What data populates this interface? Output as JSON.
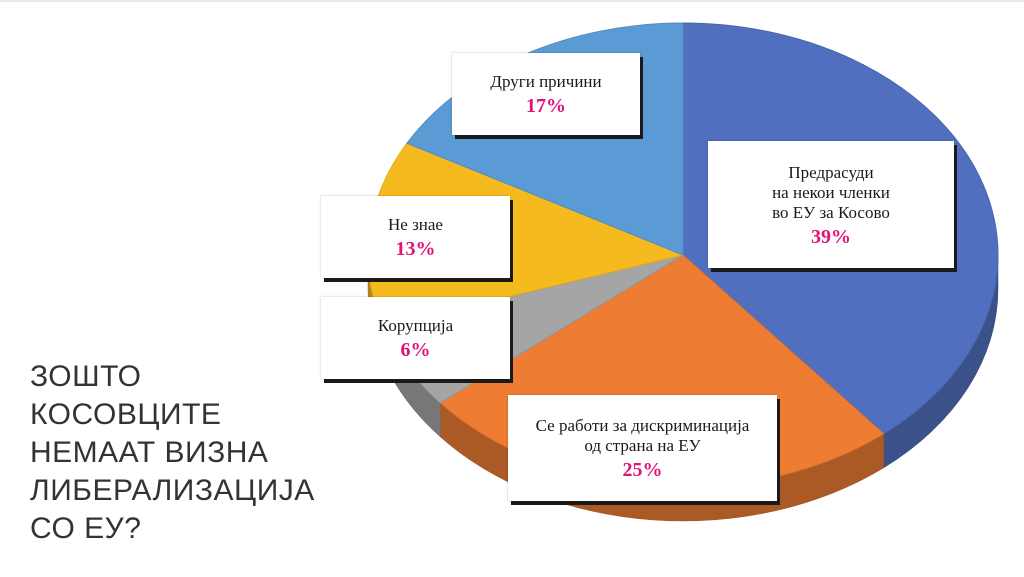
{
  "chart_data": {
    "type": "pie",
    "title": "ЗОШТО КОСОВЦИТЕ НЕМААТ ВИЗНА ЛИБЕРАЛИЗАЦИЈА СО ЕУ?",
    "title_lines": [
      "ЗОШТО",
      "КОСОВЦИТЕ",
      "НЕМААТ ВИЗНА",
      "ЛИБЕРАЛИЗАЦИЈА",
      "СО ЕУ?"
    ],
    "slices": [
      {
        "label_lines": [
          "Предрасуди",
          "на некои членки",
          "во ЕУ за Косово"
        ],
        "value": 39,
        "pct_label": "39%",
        "color": "#5070bf"
      },
      {
        "label_lines": [
          "Се работи за дискриминација",
          "од страна на ЕУ"
        ],
        "value": 25,
        "pct_label": "25%",
        "color": "#ee7d33"
      },
      {
        "label_lines": [
          "Корупција"
        ],
        "value": 6,
        "pct_label": "6%",
        "color": "#a5a5a5"
      },
      {
        "label_lines": [
          "Не знае"
        ],
        "value": 13,
        "pct_label": "13%",
        "color": "#f5bb1e"
      },
      {
        "label_lines": [
          "Други причини"
        ],
        "value": 17,
        "pct_label": "17%",
        "color": "#5b9bd5"
      }
    ]
  }
}
